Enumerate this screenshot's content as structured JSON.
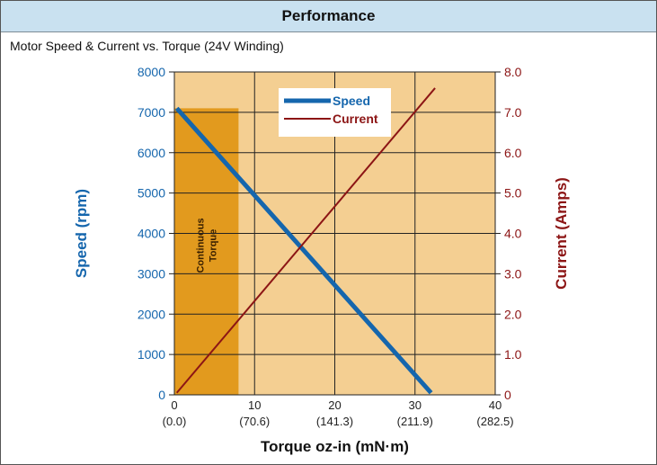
{
  "panel": {
    "header": "Performance",
    "subtitle": "Motor Speed & Current vs. Torque (24V Winding)"
  },
  "colors": {
    "plot_bg": "#f4cf92",
    "region": "#e29a1e",
    "speed": "#1566ad",
    "current": "#8c1515",
    "grid": "#222222"
  },
  "chart_data": {
    "type": "line",
    "title": "Motor Speed & Current vs. Torque (24V Winding)",
    "xlabel": "Torque oz-in (mN·m)",
    "ylabel_left": "Speed (rpm)",
    "ylabel_right": "Current (Amps)",
    "xlim": [
      0,
      40
    ],
    "ylim_left": [
      0,
      8000
    ],
    "ylim_right": [
      0,
      8.0
    ],
    "x_ticks": [
      {
        "value": 0,
        "label": "0",
        "sublabel": "(0.0)"
      },
      {
        "value": 10,
        "label": "10",
        "sublabel": "(70.6)"
      },
      {
        "value": 20,
        "label": "20",
        "sublabel": "(141.3)"
      },
      {
        "value": 30,
        "label": "30",
        "sublabel": "(211.9)"
      },
      {
        "value": 40,
        "label": "40",
        "sublabel": "(282.5)"
      }
    ],
    "y_left_ticks": [
      "0",
      "1000",
      "2000",
      "3000",
      "4000",
      "5000",
      "6000",
      "7000",
      "8000"
    ],
    "y_right_ticks": [
      "0",
      "1.0",
      "2.0",
      "3.0",
      "4.0",
      "5.0",
      "6.0",
      "7.0",
      "8.0"
    ],
    "grid": true,
    "legend": {
      "position": "top-center",
      "entries": [
        "Speed",
        "Current"
      ]
    },
    "series": [
      {
        "name": "Speed",
        "axis": "left",
        "x": [
          0.3,
          32
        ],
        "y": [
          7100,
          50
        ]
      },
      {
        "name": "Current",
        "axis": "right",
        "x": [
          0.3,
          32.5
        ],
        "y": [
          0.05,
          7.6
        ]
      }
    ],
    "regions": [
      {
        "label": "Continuous Torque",
        "x_from": 0,
        "x_to": 8
      }
    ]
  }
}
